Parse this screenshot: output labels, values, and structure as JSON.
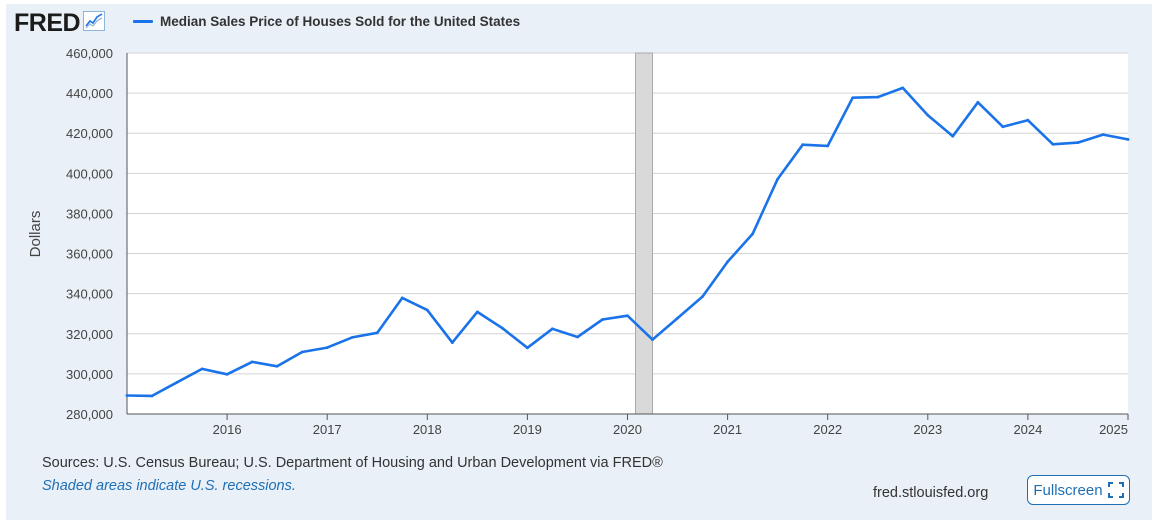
{
  "brand": {
    "logo_text": "FRED"
  },
  "legend": {
    "series_label": "Median Sales Price of Houses Sold for the United States",
    "color": "#1a73e8"
  },
  "footer": {
    "sources": "Sources: U.S. Census Bureau; U.S. Department of Housing and Urban Development via FRED®",
    "shade_note": "Shaded areas indicate U.S. recessions.",
    "site": "fred.stlouisfed.org",
    "fullscreen_label": "Fullscreen"
  },
  "chart_data": {
    "type": "line",
    "title": "",
    "xlabel": "",
    "ylabel": "Dollars",
    "xlim": [
      2015.0,
      2025.0
    ],
    "ylim": [
      280000,
      460000
    ],
    "yticks": [
      280000,
      300000,
      320000,
      340000,
      360000,
      380000,
      400000,
      420000,
      440000,
      460000
    ],
    "ytick_labels": [
      "280,000",
      "300,000",
      "320,000",
      "340,000",
      "360,000",
      "380,000",
      "400,000",
      "420,000",
      "440,000",
      "460,000"
    ],
    "xticks": [
      2016,
      2017,
      2018,
      2019,
      2020,
      2021,
      2022,
      2023,
      2024,
      2025
    ],
    "xtick_labels": [
      "2016",
      "2017",
      "2018",
      "2019",
      "2020",
      "2021",
      "2022",
      "2023",
      "2024",
      "2025"
    ],
    "grid": true,
    "recessions": [
      [
        2020.08,
        2020.25
      ]
    ],
    "series": [
      {
        "name": "Median Sales Price of Houses Sold for the United States",
        "color": "#1a73e8",
        "x": [
          2015.0,
          2015.25,
          2015.5,
          2015.75,
          2016.0,
          2016.25,
          2016.5,
          2016.75,
          2017.0,
          2017.25,
          2017.5,
          2017.75,
          2018.0,
          2018.25,
          2018.5,
          2018.75,
          2019.0,
          2019.25,
          2019.5,
          2019.75,
          2020.0,
          2020.25,
          2020.5,
          2020.75,
          2021.0,
          2021.25,
          2021.5,
          2021.75,
          2022.0,
          2022.25,
          2022.5,
          2022.75,
          2023.0,
          2023.25,
          2023.5,
          2023.75,
          2024.0,
          2024.25,
          2024.5,
          2024.75,
          2025.0
        ],
        "values": [
          289200,
          289000,
          295800,
          302500,
          299800,
          306000,
          303800,
          310900,
          313100,
          318200,
          320500,
          337900,
          331800,
          315600,
          330900,
          322800,
          313000,
          322500,
          318400,
          327100,
          329000,
          317100,
          327800,
          338600,
          355900,
          369800,
          397100,
          414300,
          413700,
          437700,
          438000,
          442600,
          429000,
          418500,
          435400,
          423200,
          426500,
          414500,
          415300,
          419300,
          416900
        ]
      }
    ]
  }
}
